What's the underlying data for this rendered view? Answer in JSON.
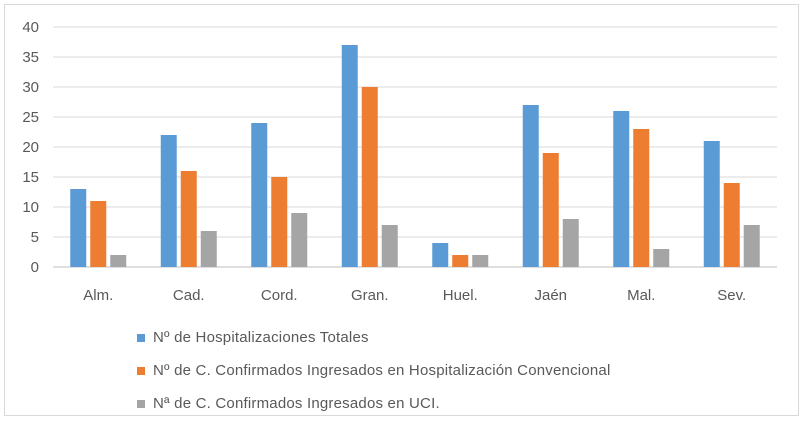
{
  "chart_data": {
    "type": "bar",
    "categories": [
      "Alm.",
      "Cad.",
      "Cord.",
      "Gran.",
      "Huel.",
      "Jaén",
      "Mal.",
      "Sev."
    ],
    "series": [
      {
        "name": "Nº de Hospitalizaciones Totales",
        "values": [
          13,
          22,
          24,
          37,
          4,
          27,
          26,
          21
        ],
        "color": "#5b9bd5"
      },
      {
        "name": "Nº de C. Confirmados Ingresados en Hospitalización Convencional",
        "values": [
          11,
          16,
          15,
          30,
          2,
          19,
          23,
          14
        ],
        "color": "#ed7d31"
      },
      {
        "name": "Nª de C. Confirmados Ingresados en UCI.",
        "values": [
          2,
          6,
          9,
          7,
          2,
          8,
          3,
          7
        ],
        "color": "#a5a5a5"
      }
    ],
    "ylim": [
      0,
      40
    ],
    "yticks": [
      0,
      5,
      10,
      15,
      20,
      25,
      30,
      35,
      40
    ],
    "grid": true,
    "legend_position": "bottom-left"
  }
}
